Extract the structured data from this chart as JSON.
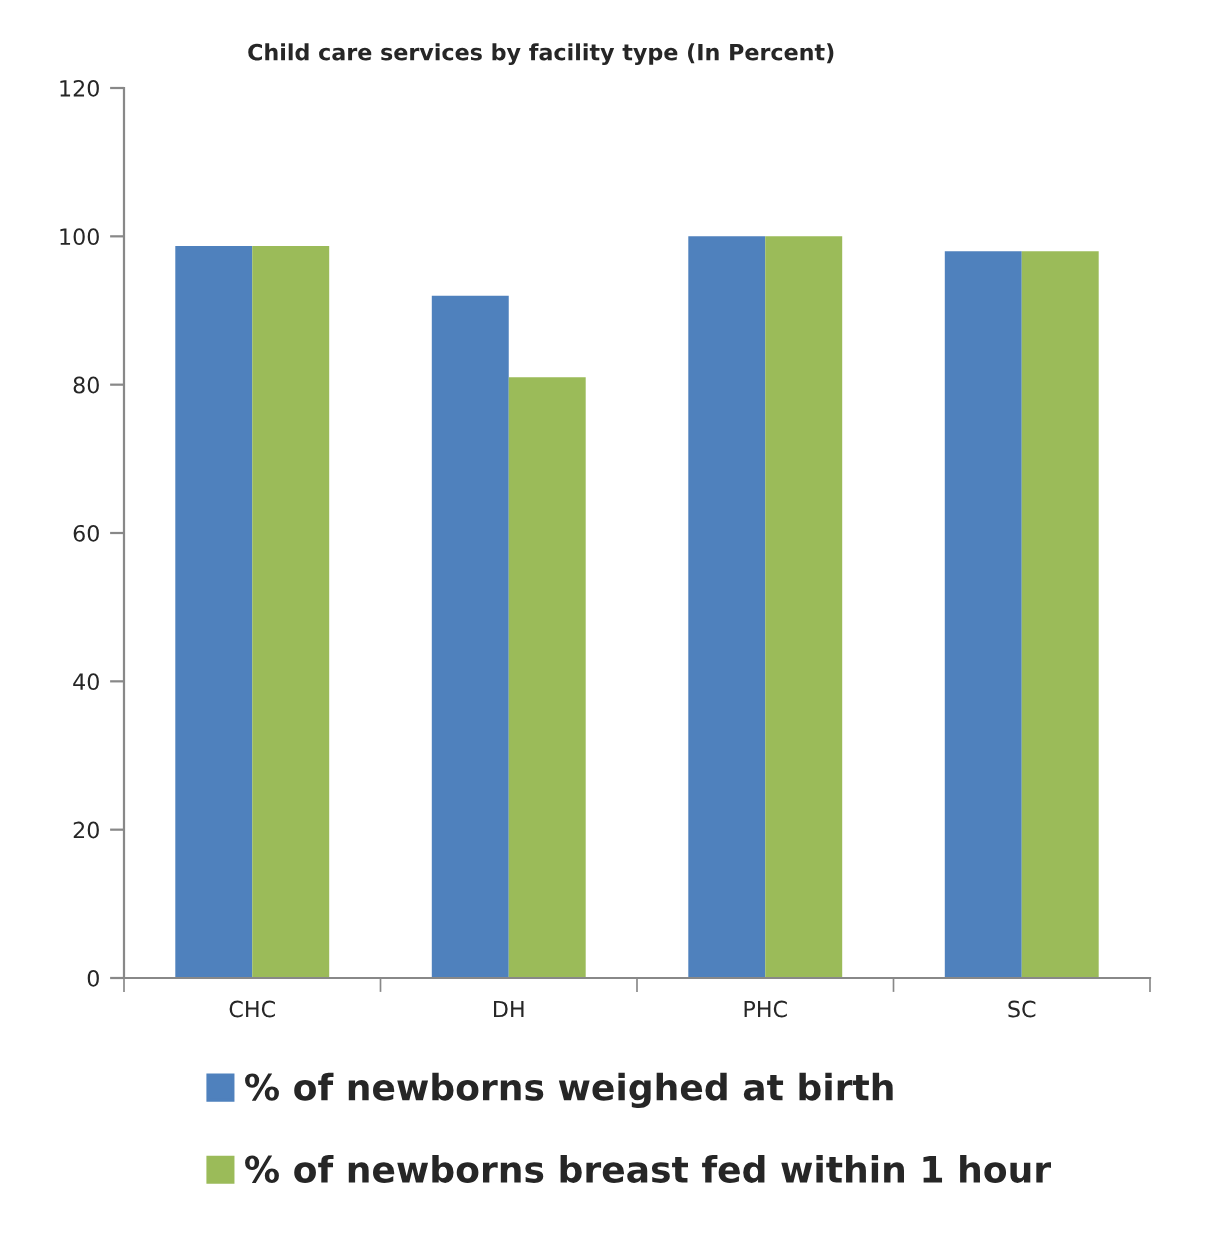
{
  "chart_data": {
    "type": "bar",
    "title": "Child care services by facility type (In Percent)",
    "categories": [
      "CHC",
      "DH",
      "PHC",
      "SC"
    ],
    "series": [
      {
        "name": "% of newborns weighed at birth",
        "color": "#4f81bd",
        "values": [
          98.7,
          92,
          100,
          98
        ]
      },
      {
        "name": "% of newborns breast fed within 1 hour",
        "color": "#9bbb59",
        "values": [
          98.7,
          81,
          100,
          98
        ]
      }
    ],
    "ylim": [
      0,
      120
    ],
    "yticks": [
      0,
      20,
      40,
      60,
      80,
      100,
      120
    ],
    "grid": false,
    "legend": "bottom"
  }
}
